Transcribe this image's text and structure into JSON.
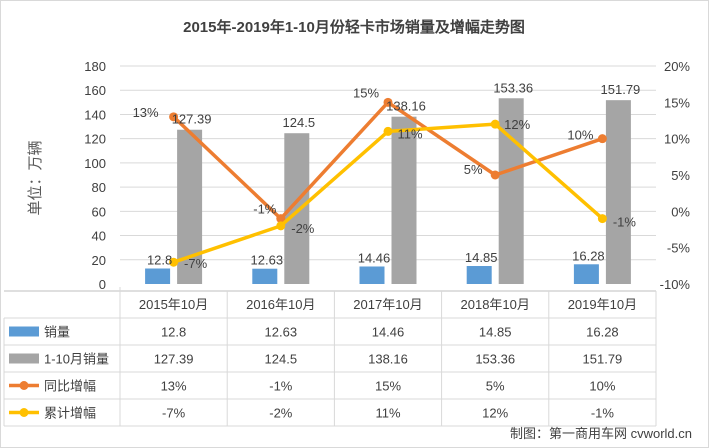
{
  "chart_data": {
    "type": "bar",
    "title": "2015年-2019年1-10月份轻卡市场销量及增幅走势图",
    "ylabel": "单位：万辆",
    "categories": [
      "2015年10月",
      "2016年10月",
      "2017年10月",
      "2018年10月",
      "2019年10月"
    ],
    "ylim": [
      0,
      180
    ],
    "y_ticks": [
      "0",
      "20",
      "40",
      "60",
      "80",
      "100",
      "120",
      "140",
      "160",
      "180"
    ],
    "y2lim": [
      -10,
      20
    ],
    "y2_ticks": [
      "-10%",
      "-5%",
      "0%",
      "5%",
      "10%",
      "15%",
      "20%"
    ],
    "series": [
      {
        "name": "销量",
        "kind": "bar",
        "axis": "left",
        "color": "#5B9BD5",
        "values": [
          12.8,
          12.63,
          14.46,
          14.85,
          16.28
        ],
        "labels": [
          "12.8",
          "12.63",
          "14.46",
          "14.85",
          "16.28"
        ]
      },
      {
        "name": "1-10月销量",
        "kind": "bar",
        "axis": "left",
        "color": "#A5A5A5",
        "values": [
          127.39,
          124.5,
          138.16,
          153.36,
          151.79
        ],
        "labels": [
          "127.39",
          "124.5",
          "138.16",
          "153.36",
          "151.79"
        ]
      },
      {
        "name": "同比增幅",
        "kind": "line",
        "axis": "right",
        "color": "#ED7D31",
        "values": [
          13,
          -1,
          15,
          5,
          10
        ],
        "labels": [
          "13%",
          "-1%",
          "15%",
          "5%",
          "10%"
        ]
      },
      {
        "name": "累计增幅",
        "kind": "line",
        "axis": "right",
        "color": "#FFC000",
        "values": [
          -7,
          -2,
          11,
          12,
          -1
        ],
        "labels": [
          "-7%",
          "-2%",
          "11%",
          "12%",
          "-1%"
        ]
      }
    ],
    "grid": true,
    "legend": "data-table"
  },
  "credit": "制图：第一商用车网 cvworld.cn"
}
